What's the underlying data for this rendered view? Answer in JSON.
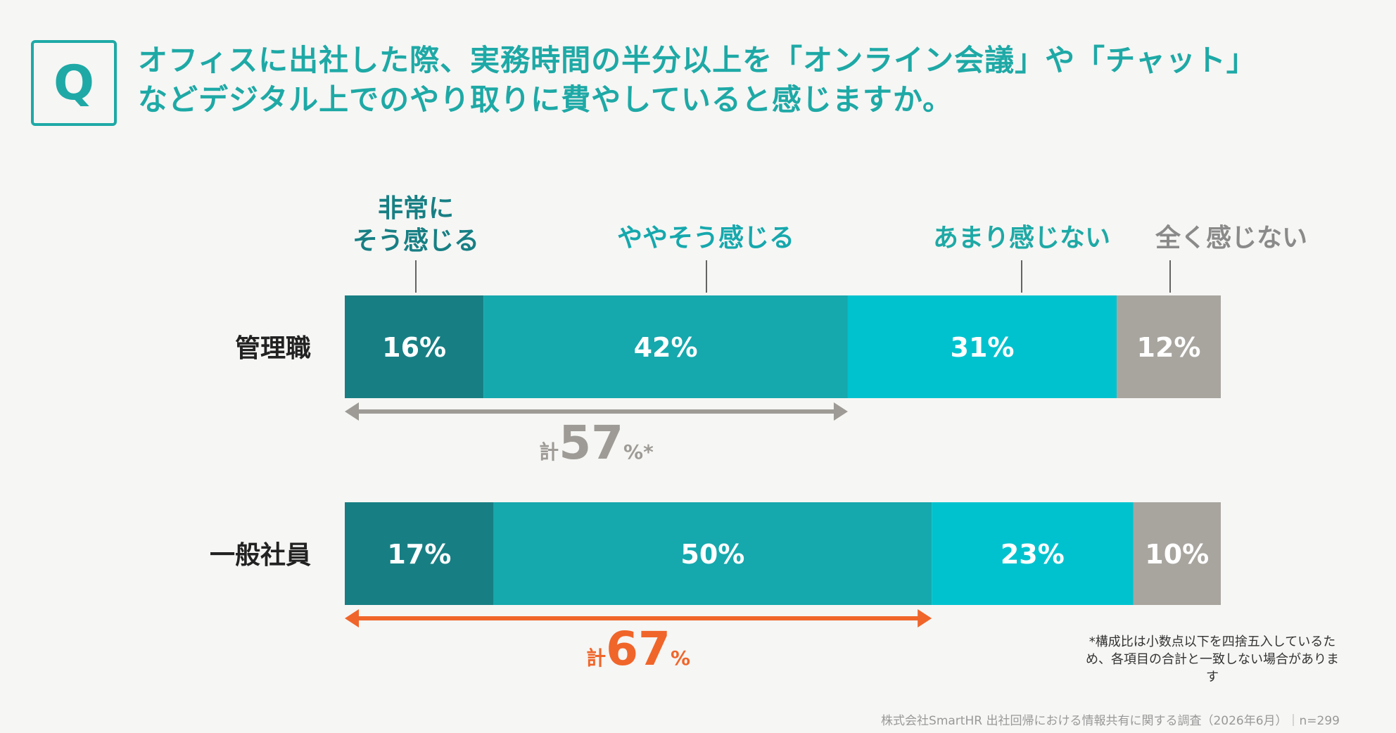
{
  "question": {
    "badge": "Q",
    "line1": "オフィスに出社した際、実務時間の半分以上を「オンライン会議」や「チャット」",
    "line2": "などデジタル上でのやり取りに費やしていると感じますか。"
  },
  "chart_data": {
    "type": "bar",
    "stacked": true,
    "orientation": "horizontal",
    "categories": [
      "管理職",
      "一般社員"
    ],
    "series": [
      {
        "name": "非常にそう感じる",
        "label_lines": [
          "非常に",
          "そう感じる"
        ],
        "values": [
          16,
          17
        ],
        "value_labels": [
          "16%",
          "17%"
        ],
        "color": "#177f84"
      },
      {
        "name": "ややそう感じる",
        "label_lines": [
          "ややそう感じる"
        ],
        "values": [
          42,
          50
        ],
        "value_labels": [
          "42%",
          "50%"
        ],
        "color": "#15a8ad"
      },
      {
        "name": "あまり感じない",
        "label_lines": [
          "あまり感じない"
        ],
        "values": [
          31,
          23
        ],
        "value_labels": [
          "31%",
          "23%"
        ],
        "color": "#00c2ce"
      },
      {
        "name": "全く感じない",
        "label_lines": [
          "全く感じない"
        ],
        "values": [
          12,
          10
        ],
        "value_labels": [
          "12%",
          "10%"
        ],
        "color": "#a8a59f"
      }
    ],
    "totals": [
      {
        "prefix": "計",
        "value": "57",
        "suffix": "%*",
        "color": "#9e9b96"
      },
      {
        "prefix": "計",
        "value": "67",
        "suffix": "%",
        "color": "#f0652a"
      }
    ],
    "legend_colors": [
      "#177f84",
      "#15a8ad",
      "#1ea9a6",
      "#8a8a8a"
    ],
    "xlim": [
      0,
      100
    ]
  },
  "note": "*構成比は小数点以下を四捨五入しているため、各項目の合計と一致しない場合があります",
  "source": "株式会社SmartHR 出社回帰における情報共有に関する調査（2026年6月）｜n=299"
}
